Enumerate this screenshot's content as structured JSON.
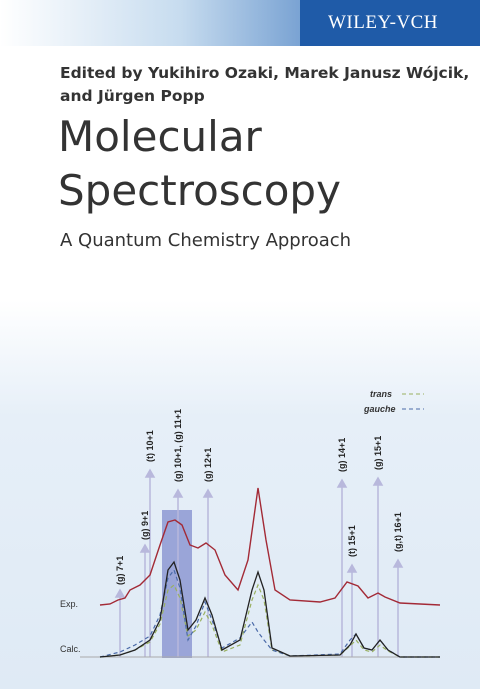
{
  "publisher": "WILEY-VCH",
  "editors": [
    "Edited by Yukihiro Ozaki, Marek Janusz Wójcik,",
    "and Jürgen Popp"
  ],
  "title": [
    "Molecular",
    "Spectroscopy"
  ],
  "subtitle": "A Quantum Chemistry Approach",
  "figure": {
    "legend": [
      "trans",
      "gauche"
    ],
    "row_labels": [
      "Exp.",
      "Calc."
    ],
    "peak_labels": [
      "(g) 7+1",
      "(g) 9+1",
      "(t) 10+1",
      "(g) 10+1, (g) 11+1",
      "(g) 12+1",
      "(g) 14+1",
      "(t) 15+1",
      "(g) 15+1",
      "(g,t) 16+1"
    ]
  }
}
